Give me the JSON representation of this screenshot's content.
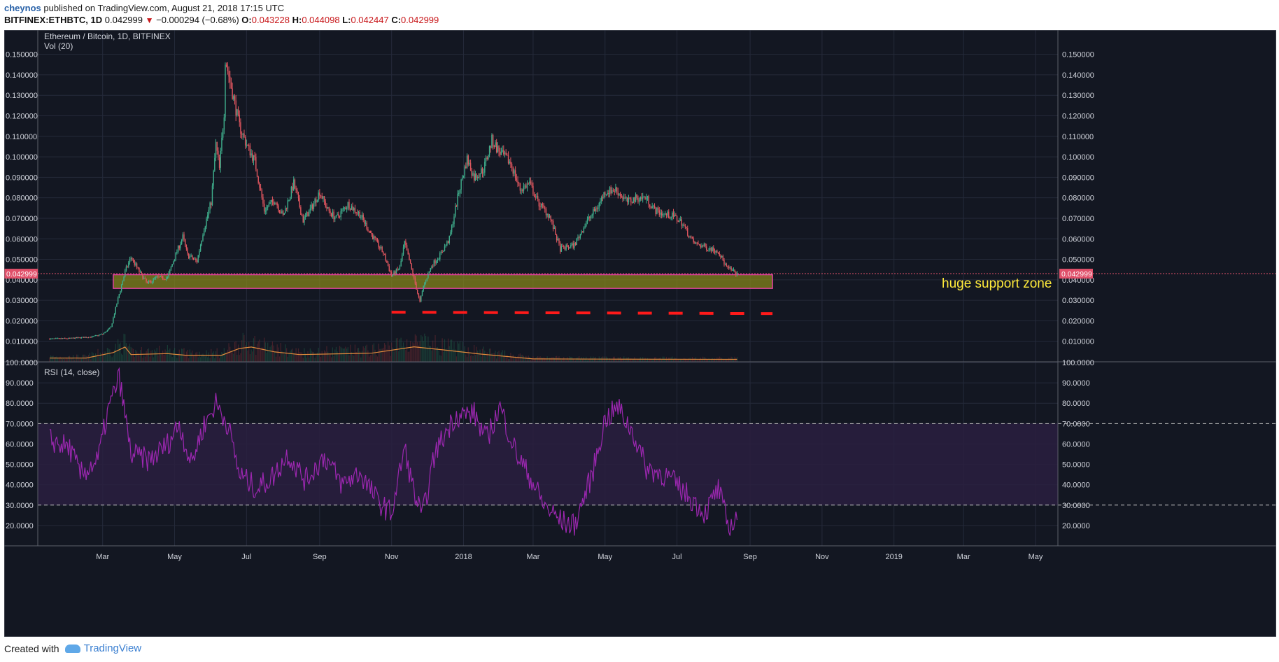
{
  "header": {
    "author": "cheynos",
    "published_text": "published on TradingView.com, August 21, 2018 17:15 UTC",
    "symbol_line": "BITFINEX:ETHBTC, 1D",
    "last": "0.042999",
    "change": "−0.000294 (−0.68%)",
    "open_label": "O:",
    "open": "0.043228",
    "high_label": "H:",
    "high": "0.044098",
    "low_label": "L:",
    "low": "0.042447",
    "close_label": "C:",
    "close": "0.042999"
  },
  "footer": {
    "created_with": "Created with",
    "brand": "TradingView"
  },
  "colors": {
    "bg": "#131722",
    "grid": "#252a3a",
    "up": "#3fae8c",
    "down": "#e0565f",
    "rsi": "#9c27b0",
    "rsi_band": "#2a1f40",
    "support_fill": "#8b8b1a",
    "support_border": "#e040a0",
    "dashed": "#ff1a1a",
    "vol_ma": "#e08a3c",
    "price_label": "#e0506a",
    "annotation": "#ffeb3b"
  },
  "chart_data": {
    "type": "candlestick",
    "title": "Ethereum / Bitcoin, 1D, BITFINEX",
    "volume_label": "Vol (20)",
    "price_axis": {
      "ylim": [
        0,
        0.155
      ],
      "ticks": [
        "0.010000",
        "0.020000",
        "0.030000",
        "0.040000",
        "0.050000",
        "0.060000",
        "0.070000",
        "0.080000",
        "0.090000",
        "0.100000",
        "0.110000",
        "0.120000",
        "0.130000",
        "0.140000",
        "0.150000"
      ]
    },
    "last_price_label": "0.042999",
    "x_ticks": [
      "Mar",
      "May",
      "Jul",
      "Sep",
      "Nov",
      "2018",
      "Mar",
      "May",
      "Jul",
      "Sep",
      "Nov",
      "2019",
      "Mar",
      "May"
    ],
    "close_path": [
      [
        "2017-01-15",
        0.0112
      ],
      [
        "2017-02-01",
        0.0114
      ],
      [
        "2017-02-20",
        0.0122
      ],
      [
        "2017-03-01",
        0.0135
      ],
      [
        "2017-03-08",
        0.0168
      ],
      [
        "2017-03-15",
        0.033
      ],
      [
        "2017-03-20",
        0.044
      ],
      [
        "2017-03-25",
        0.051
      ],
      [
        "2017-04-01",
        0.044
      ],
      [
        "2017-04-08",
        0.038
      ],
      [
        "2017-04-15",
        0.041
      ],
      [
        "2017-04-25",
        0.041
      ],
      [
        "2017-05-01",
        0.051
      ],
      [
        "2017-05-08",
        0.061
      ],
      [
        "2017-05-12",
        0.052
      ],
      [
        "2017-05-20",
        0.049
      ],
      [
        "2017-05-25",
        0.063
      ],
      [
        "2017-06-01",
        0.078
      ],
      [
        "2017-06-05",
        0.106
      ],
      [
        "2017-06-08",
        0.094
      ],
      [
        "2017-06-12",
        0.122
      ],
      [
        "2017-06-13",
        0.148
      ],
      [
        "2017-06-18",
        0.134
      ],
      [
        "2017-06-25",
        0.115
      ],
      [
        "2017-07-01",
        0.106
      ],
      [
        "2017-07-08",
        0.098
      ],
      [
        "2017-07-16",
        0.074
      ],
      [
        "2017-07-25",
        0.079
      ],
      [
        "2017-08-01",
        0.071
      ],
      [
        "2017-08-10",
        0.087
      ],
      [
        "2017-08-18",
        0.069
      ],
      [
        "2017-08-25",
        0.075
      ],
      [
        "2017-09-01",
        0.083
      ],
      [
        "2017-09-08",
        0.074
      ],
      [
        "2017-09-15",
        0.07
      ],
      [
        "2017-09-25",
        0.077
      ],
      [
        "2017-10-05",
        0.072
      ],
      [
        "2017-10-15",
        0.062
      ],
      [
        "2017-10-25",
        0.053
      ],
      [
        "2017-11-01",
        0.042
      ],
      [
        "2017-11-08",
        0.046
      ],
      [
        "2017-11-12",
        0.058
      ],
      [
        "2017-11-18",
        0.045
      ],
      [
        "2017-11-25",
        0.029
      ],
      [
        "2017-11-28",
        0.037
      ],
      [
        "2017-12-05",
        0.047
      ],
      [
        "2017-12-12",
        0.052
      ],
      [
        "2017-12-20",
        0.06
      ],
      [
        "2017-12-28",
        0.083
      ],
      [
        "2018-01-04",
        0.099
      ],
      [
        "2018-01-10",
        0.09
      ],
      [
        "2018-01-18",
        0.094
      ],
      [
        "2018-01-25",
        0.108
      ],
      [
        "2018-02-01",
        0.102
      ],
      [
        "2018-02-10",
        0.097
      ],
      [
        "2018-02-18",
        0.084
      ],
      [
        "2018-02-26",
        0.087
      ],
      [
        "2018-03-05",
        0.078
      ],
      [
        "2018-03-15",
        0.071
      ],
      [
        "2018-03-24",
        0.055
      ],
      [
        "2018-04-05",
        0.057
      ],
      [
        "2018-04-15",
        0.068
      ],
      [
        "2018-04-25",
        0.076
      ],
      [
        "2018-05-01",
        0.083
      ],
      [
        "2018-05-10",
        0.084
      ],
      [
        "2018-05-20",
        0.078
      ],
      [
        "2018-05-28",
        0.08
      ],
      [
        "2018-06-05",
        0.08
      ],
      [
        "2018-06-12",
        0.074
      ],
      [
        "2018-06-20",
        0.072
      ],
      [
        "2018-06-28",
        0.071
      ],
      [
        "2018-07-05",
        0.068
      ],
      [
        "2018-07-15",
        0.058
      ],
      [
        "2018-07-25",
        0.056
      ],
      [
        "2018-08-05",
        0.054
      ],
      [
        "2018-08-12",
        0.046
      ],
      [
        "2018-08-18",
        0.044
      ],
      [
        "2018-08-21",
        0.043
      ]
    ],
    "volume_ma_path": [
      [
        "2017-01-15",
        0.0018
      ],
      [
        "2017-02-15",
        0.0018
      ],
      [
        "2017-03-10",
        0.0045
      ],
      [
        "2017-03-20",
        0.0072
      ],
      [
        "2017-03-25",
        0.0035
      ],
      [
        "2017-04-25",
        0.004
      ],
      [
        "2017-05-10",
        0.0032
      ],
      [
        "2017-06-10",
        0.0032
      ],
      [
        "2017-06-25",
        0.0065
      ],
      [
        "2017-07-05",
        0.0072
      ],
      [
        "2017-07-25",
        0.0048
      ],
      [
        "2017-08-15",
        0.0035
      ],
      [
        "2017-10-15",
        0.0042
      ],
      [
        "2017-11-20",
        0.0073
      ],
      [
        "2017-12-15",
        0.0058
      ],
      [
        "2018-01-15",
        0.0038
      ],
      [
        "2018-03-01",
        0.0014
      ],
      [
        "2018-05-01",
        0.0013
      ],
      [
        "2018-08-21",
        0.0012
      ]
    ],
    "rsi": {
      "label": "RSI (14, close)",
      "ylim": [
        10,
        100
      ],
      "ticks": [
        "20.0000",
        "30.0000",
        "40.0000",
        "50.0000",
        "60.0000",
        "70.0000",
        "80.0000",
        "90.0000",
        "100.0000"
      ],
      "overbought": 70,
      "oversold": 30,
      "path": [
        [
          "2017-01-15",
          62
        ],
        [
          "2017-02-01",
          58
        ],
        [
          "2017-02-10",
          45
        ],
        [
          "2017-02-25",
          52
        ],
        [
          "2017-03-05",
          75
        ],
        [
          "2017-03-15",
          93
        ],
        [
          "2017-03-25",
          55
        ],
        [
          "2017-04-10",
          52
        ],
        [
          "2017-04-25",
          60
        ],
        [
          "2017-05-05",
          70
        ],
        [
          "2017-05-15",
          50
        ],
        [
          "2017-05-25",
          68
        ],
        [
          "2017-06-05",
          80
        ],
        [
          "2017-06-15",
          70
        ],
        [
          "2017-06-25",
          45
        ],
        [
          "2017-07-10",
          38
        ],
        [
          "2017-07-25",
          45
        ],
        [
          "2017-08-05",
          55
        ],
        [
          "2017-08-20",
          42
        ],
        [
          "2017-09-05",
          54
        ],
        [
          "2017-09-20",
          40
        ],
        [
          "2017-10-05",
          46
        ],
        [
          "2017-10-20",
          32
        ],
        [
          "2017-11-01",
          26
        ],
        [
          "2017-11-12",
          58
        ],
        [
          "2017-11-20",
          36
        ],
        [
          "2017-11-27",
          24
        ],
        [
          "2017-12-08",
          56
        ],
        [
          "2017-12-25",
          74
        ],
        [
          "2018-01-10",
          75
        ],
        [
          "2018-01-20",
          62
        ],
        [
          "2018-02-01",
          78
        ],
        [
          "2018-02-15",
          55
        ],
        [
          "2018-02-28",
          42
        ],
        [
          "2018-03-10",
          30
        ],
        [
          "2018-03-25",
          22
        ],
        [
          "2018-04-05",
          20
        ],
        [
          "2018-04-20",
          45
        ],
        [
          "2018-05-01",
          72
        ],
        [
          "2018-05-12",
          78
        ],
        [
          "2018-05-25",
          65
        ],
        [
          "2018-06-05",
          48
        ],
        [
          "2018-06-20",
          45
        ],
        [
          "2018-07-01",
          40
        ],
        [
          "2018-07-15",
          32
        ],
        [
          "2018-07-25",
          26
        ],
        [
          "2018-08-05",
          38
        ],
        [
          "2018-08-14",
          18
        ],
        [
          "2018-08-21",
          25
        ]
      ]
    },
    "annotations": {
      "support_zone": {
        "from": "2017-03-10",
        "to": "2018-09-20",
        "low": 0.0358,
        "high": 0.0425,
        "label": "huge support zone"
      },
      "dashed_support": {
        "from": "2017-11-01",
        "to": "2018-09-20",
        "start": 0.0242,
        "end": 0.0235
      }
    }
  }
}
